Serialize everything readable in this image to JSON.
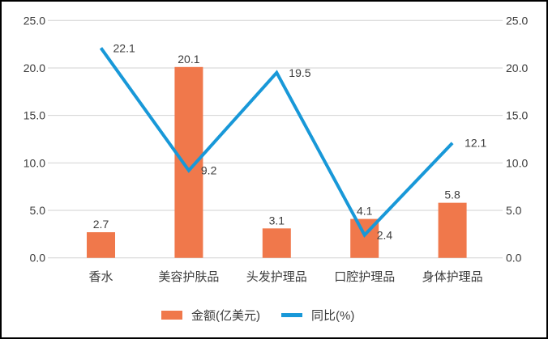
{
  "chart_data": {
    "type": "bar",
    "subtype": "combo-bar-line-dual-axis",
    "categories": [
      "香水",
      "美容护肤品",
      "头发护理品",
      "口腔护理品",
      "身体护理品"
    ],
    "series": [
      {
        "name": "金额(亿美元)",
        "type": "bar",
        "color": "#F0784B",
        "values": [
          2.7,
          20.1,
          3.1,
          4.1,
          5.8
        ]
      },
      {
        "name": "同比(%)",
        "type": "line",
        "color": "#1898D8",
        "values": [
          22.1,
          9.2,
          19.5,
          2.4,
          12.1
        ]
      }
    ],
    "title": "",
    "xlabel": "",
    "ylabel": "",
    "ylim": [
      0,
      25
    ],
    "y_ticks": [
      0,
      5,
      10,
      15,
      20,
      25
    ],
    "y_tick_decimals": 1,
    "y_tick_labels": [
      "0.0",
      "5.0",
      "10.0",
      "15.0",
      "20.0",
      "25.0"
    ],
    "dual_axis": true,
    "grid": true,
    "legend_position": "bottom",
    "data_labels": true
  },
  "colors": {
    "bar": "#F0784B",
    "line": "#1898D8",
    "grid": "#D2D2D2",
    "text": "#3C3C3C",
    "background": "#FFFFFF",
    "border": "#000000"
  }
}
